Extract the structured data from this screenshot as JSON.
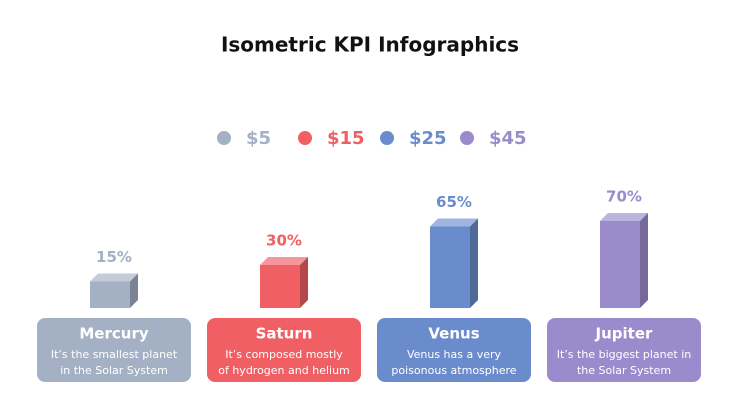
{
  "chart_data": {
    "type": "isometric-bar",
    "title": "Isometric KPI Infographics",
    "legend": [
      {
        "name": "$5",
        "color": "#a4b0c4"
      },
      {
        "name": "$15",
        "color": "#ef5f63"
      },
      {
        "name": "$25",
        "color": "#6b8ccc"
      },
      {
        "name": "$45",
        "color": "#9a8ccc"
      }
    ],
    "categories": [
      "Mercury",
      "Saturn",
      "Venus",
      "Jupiter"
    ],
    "values": [
      15,
      30,
      65,
      70
    ],
    "value_labels": [
      "15%",
      "30%",
      "65%",
      "70%"
    ],
    "colors": [
      "#a4b0c4",
      "#ef5f63",
      "#6b8ccc",
      "#9a8ccc"
    ],
    "descriptions": [
      [
        "It’s the smallest planet",
        "in the Solar System"
      ],
      [
        "It’s composed mostly",
        "of hydrogen and helium"
      ],
      [
        "Venus has a very",
        "poisonous atmosphere"
      ],
      [
        "It’s the biggest planet in",
        "the Solar System"
      ]
    ]
  }
}
